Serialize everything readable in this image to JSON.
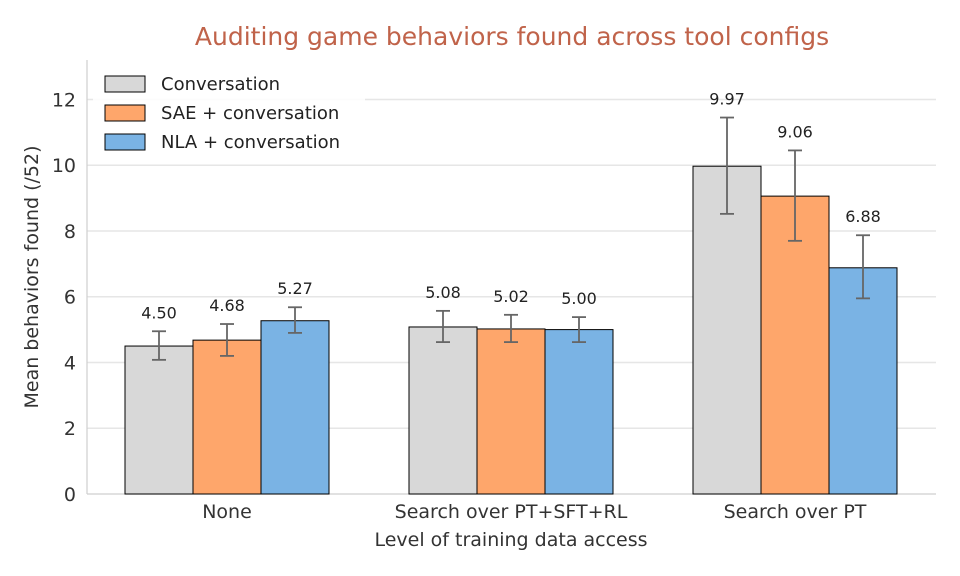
{
  "chart_data": {
    "type": "bar",
    "title": "Auditing game behaviors found across tool configs",
    "xlabel": "Level of training data access",
    "ylabel": "Mean behaviors found (/52)",
    "categories": [
      "None",
      "Search over PT+SFT+RL",
      "Search over PT"
    ],
    "ylim": [
      0,
      13.2
    ],
    "yticks": [
      0,
      2,
      4,
      6,
      8,
      10,
      12
    ],
    "grid": "horizontal",
    "legend_position": "top-left",
    "series": [
      {
        "name": "Conversation",
        "color": "#d8d8d8",
        "values": [
          4.5,
          5.08,
          9.97
        ],
        "labels": [
          "4.50",
          "5.08",
          "9.97"
        ],
        "err_low": [
          4.08,
          4.62,
          8.52
        ],
        "err_high": [
          4.95,
          5.57,
          11.45
        ]
      },
      {
        "name": "SAE + conversation",
        "color": "#fea66b",
        "values": [
          4.68,
          5.02,
          9.06
        ],
        "labels": [
          "4.68",
          "5.02",
          "9.06"
        ],
        "err_low": [
          4.2,
          4.62,
          7.7
        ],
        "err_high": [
          5.17,
          5.45,
          10.45
        ]
      },
      {
        "name": "NLA + conversation",
        "color": "#7ab3e4",
        "values": [
          5.27,
          5.0,
          6.88
        ],
        "labels": [
          "5.27",
          "5.00",
          "6.88"
        ],
        "err_low": [
          4.9,
          4.62,
          5.95
        ],
        "err_high": [
          5.68,
          5.38,
          7.87
        ]
      }
    ]
  }
}
